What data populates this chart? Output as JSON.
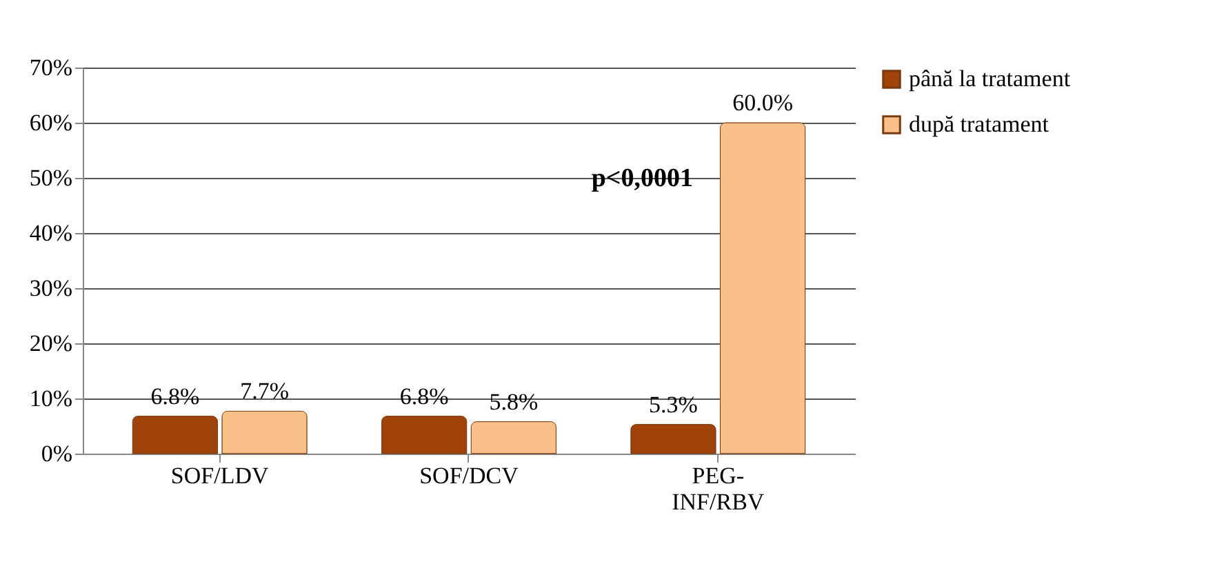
{
  "chart_data": {
    "type": "bar",
    "categories": [
      "SOF/LDV",
      "SOF/DCV",
      "PEG-INF/RBV"
    ],
    "series": [
      {
        "name": "până la tratament",
        "color": "#a0430a",
        "values": [
          6.8,
          6.8,
          5.3
        ],
        "value_labels": [
          "6.8%",
          "6.8%",
          "5.3%"
        ]
      },
      {
        "name": "după tratament",
        "color": "#f9c08a",
        "values": [
          7.7,
          5.8,
          60.0
        ],
        "value_labels": [
          "7.7%",
          "5.8%",
          "60.0%"
        ]
      }
    ],
    "ylim": [
      0,
      70
    ],
    "yticks": [
      {
        "value": 0,
        "label": "0%"
      },
      {
        "value": 10,
        "label": "10%"
      },
      {
        "value": 20,
        "label": "20%"
      },
      {
        "value": 30,
        "label": "30%"
      },
      {
        "value": 40,
        "label": "40%"
      },
      {
        "value": 50,
        "label": "50%"
      },
      {
        "value": 60,
        "label": "60%"
      },
      {
        "value": 70,
        "label": "70%"
      }
    ],
    "grid": "y",
    "legend": "right",
    "annotations": [
      {
        "text": "p<0,0001",
        "x": "PEG-INF/RBV",
        "y": 50
      }
    ]
  }
}
